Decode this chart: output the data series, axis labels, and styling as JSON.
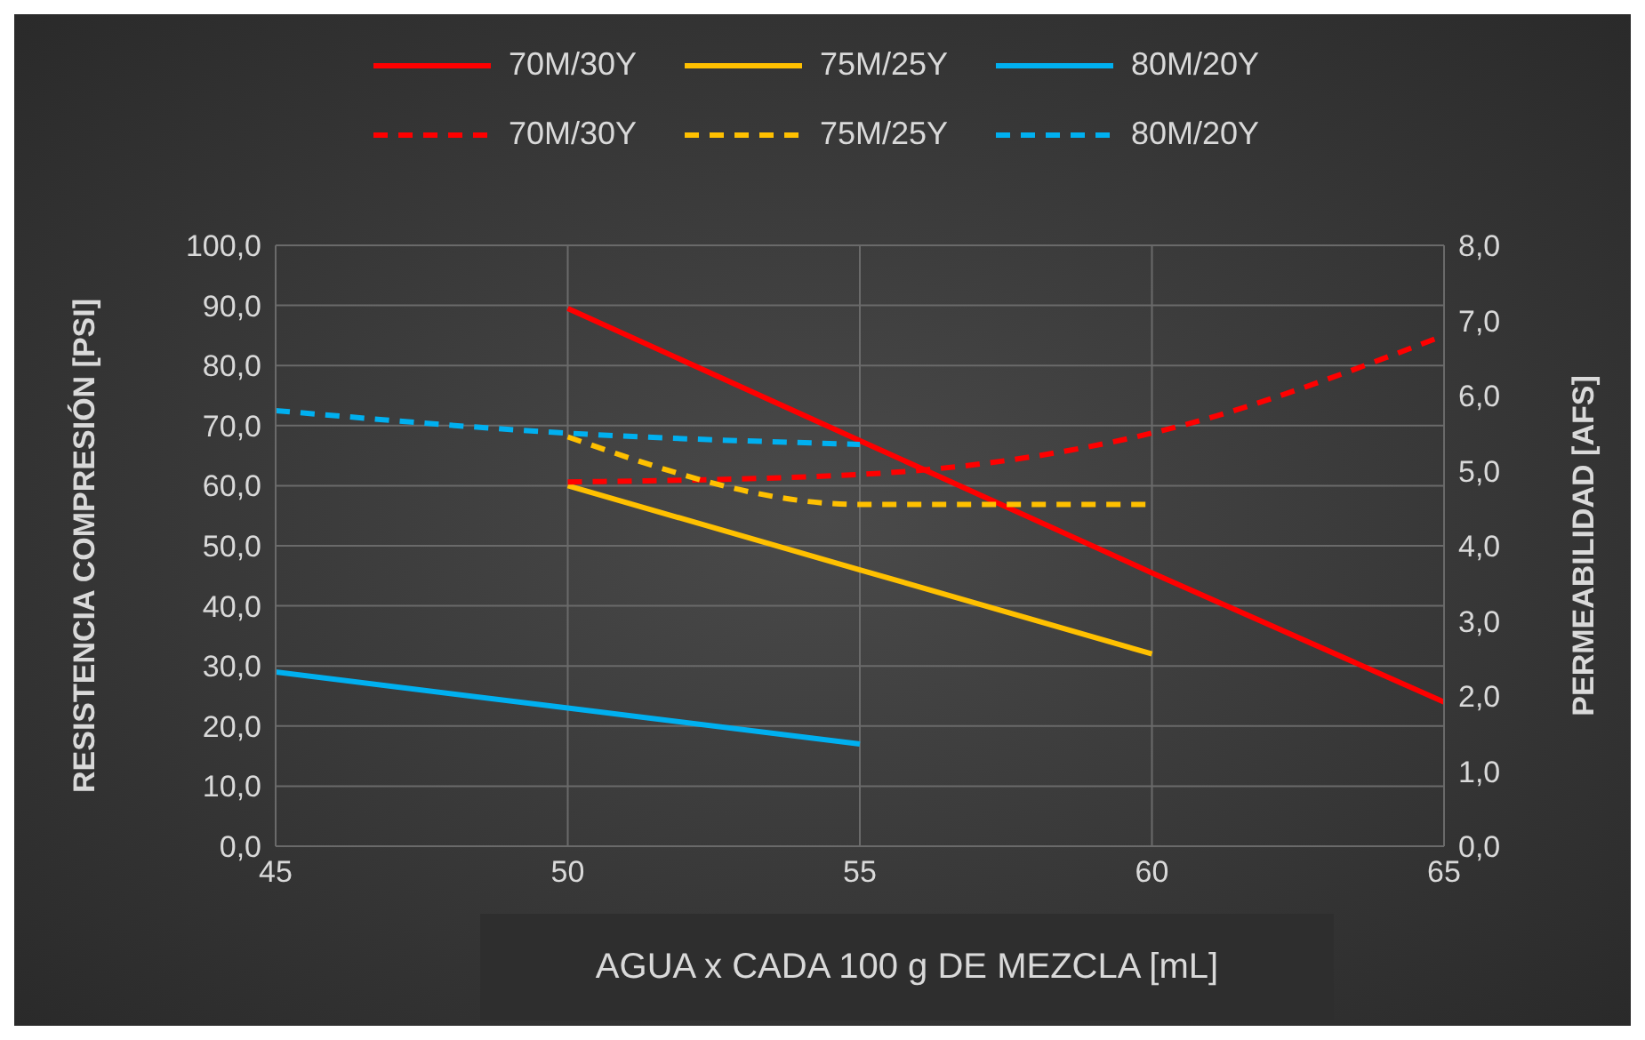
{
  "chart_data": {
    "type": "line",
    "xlabel": "AGUA x CADA 100 g DE MEZCLA [mL]",
    "ylabel": "RESISTENCIA COMPRESIÓN [PSI]",
    "y2label": "PERMEABILIDAD [AFS]",
    "x": [
      45,
      50,
      55,
      60,
      65
    ],
    "series": [
      {
        "name": "70M/30Y",
        "color": "#ff0000",
        "values": [
          null,
          89.5,
          67.5,
          45.5,
          24
        ],
        "line_style": "solid"
      },
      {
        "name": "75M/25Y",
        "color": "#ffc000",
        "values": [
          null,
          60,
          46,
          32,
          null
        ],
        "line_style": "solid"
      },
      {
        "name": "80M/20Y",
        "color": "#00b0f0",
        "values": [
          29,
          23,
          17,
          null,
          null
        ],
        "line_style": "solid"
      },
      {
        "name": "70M/30Y",
        "color": "#ff0000",
        "values": [
          null,
          4.85,
          4.95,
          5.5,
          6.8
        ],
        "line_style": "dashed",
        "axis": "y2"
      },
      {
        "name": "75M/25Y",
        "color": "#ffc000",
        "values": [
          null,
          5.45,
          4.55,
          4.55,
          null
        ],
        "line_style": "dashed",
        "axis": "y2"
      },
      {
        "name": "80M/20Y",
        "color": "#00b0f0",
        "values": [
          5.8,
          5.5,
          5.35,
          null,
          null
        ],
        "line_style": "dashed",
        "axis": "y2"
      }
    ],
    "xlim": [
      45,
      65
    ],
    "xticks": [
      45,
      50,
      55,
      60,
      65
    ],
    "ylim": [
      0,
      100
    ],
    "yticks": [
      {
        "value": 0,
        "label": "0,0"
      },
      {
        "value": 10,
        "label": "10,0"
      },
      {
        "value": 20,
        "label": "20,0"
      },
      {
        "value": 30,
        "label": "30,0"
      },
      {
        "value": 40,
        "label": "40,0"
      },
      {
        "value": 50,
        "label": "50,0"
      },
      {
        "value": 60,
        "label": "60,0"
      },
      {
        "value": 70,
        "label": "70,0"
      },
      {
        "value": 80,
        "label": "80,0"
      },
      {
        "value": 90,
        "label": "90,0"
      },
      {
        "value": 100,
        "label": "100,0"
      }
    ],
    "y2lim": [
      0,
      8
    ],
    "y2ticks": [
      {
        "value": 0,
        "label": "0,0"
      },
      {
        "value": 1,
        "label": "1,0"
      },
      {
        "value": 2,
        "label": "2,0"
      },
      {
        "value": 3,
        "label": "3,0"
      },
      {
        "value": 4,
        "label": "4,0"
      },
      {
        "value": 5,
        "label": "5,0"
      },
      {
        "value": 6,
        "label": "6,0"
      },
      {
        "value": 7,
        "label": "7,0"
      },
      {
        "value": 8,
        "label": "8,0"
      }
    ],
    "grid": true,
    "legend": "top",
    "marker": "none"
  }
}
